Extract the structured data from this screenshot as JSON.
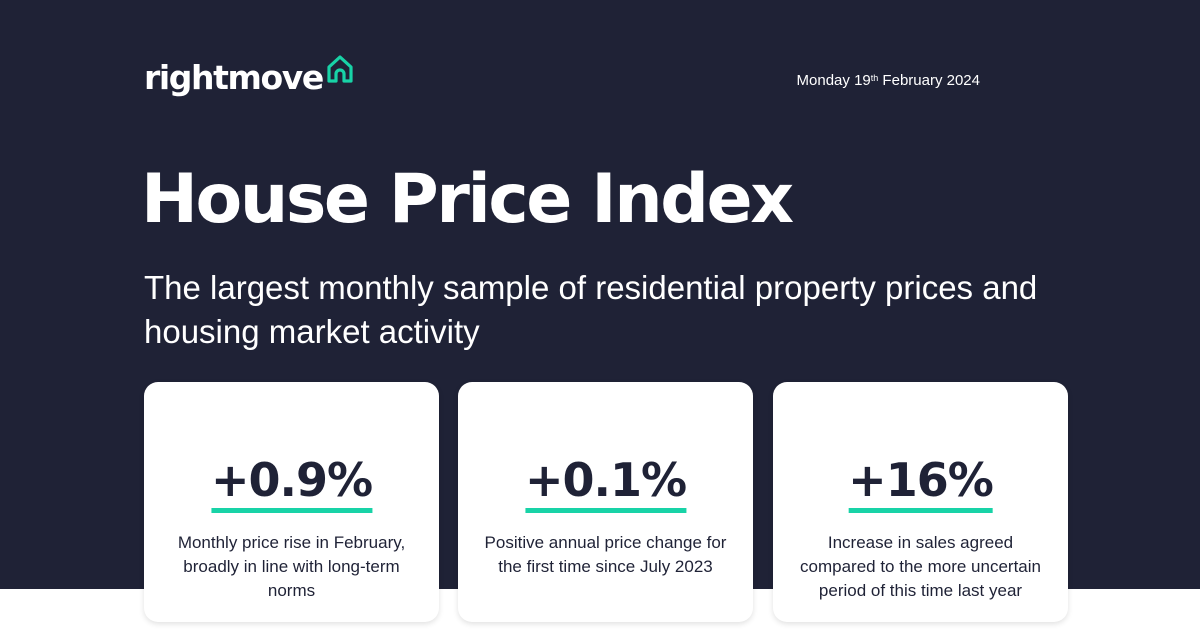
{
  "brand": {
    "name": "rightmove",
    "accent_color": "#18d3a7",
    "icon": "house-icon"
  },
  "header": {
    "date_prefix": "Monday 19",
    "date_ordinal": "th",
    "date_suffix": " February 2024"
  },
  "title": "House Price Index",
  "subtitle": "The largest monthly sample of residential property prices and housing market activity",
  "colors": {
    "background": "#1f2236",
    "card": "#ffffff",
    "underline": "#18d3a7"
  },
  "stats": [
    {
      "value": "+0.9%",
      "description": "Monthly price rise in February, broadly in line with long-term norms"
    },
    {
      "value": "+0.1%",
      "description": "Positive annual price change for the first time since July 2023"
    },
    {
      "value": "+16%",
      "description": "Increase in sales agreed compared to the more uncertain period of this time last year"
    }
  ]
}
